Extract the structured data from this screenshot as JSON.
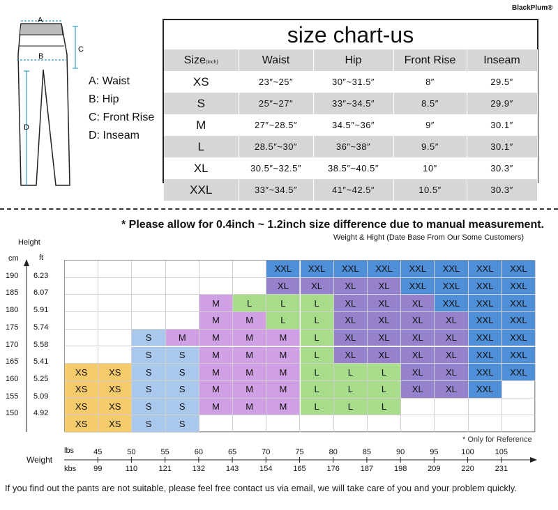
{
  "brand": "BlackPlum®",
  "pants_labels": {
    "a": "A",
    "b": "B",
    "c": "C",
    "d": "D"
  },
  "legend": [
    "A: Waist",
    "B: Hip",
    "C: Front Rise",
    "D: Inseam"
  ],
  "size_chart": {
    "title": "size chart-us",
    "header": {
      "size": "Size",
      "unit": "(Inch)",
      "waist": "Waist",
      "hip": "Hip",
      "front_rise": "Front Rise",
      "inseam": "Inseam"
    },
    "rows": [
      {
        "size": "XS",
        "waist": "23″~25″",
        "hip": "30″~31.5″",
        "rise": "8″",
        "inseam": "29.5″"
      },
      {
        "size": "S",
        "waist": "25″~27″",
        "hip": "33″~34.5″",
        "rise": "8.5″",
        "inseam": "29.9″"
      },
      {
        "size": "M",
        "waist": "27″~28.5″",
        "hip": "34.5″~36″",
        "rise": "9″",
        "inseam": "30.1″"
      },
      {
        "size": "L",
        "waist": "28.5″~30″",
        "hip": "36″~38″",
        "rise": "9.5″",
        "inseam": "30.1″"
      },
      {
        "size": "XL",
        "waist": "30.5″~32.5″",
        "hip": "38.5″~40.5″",
        "rise": "10″",
        "inseam": "30.3″"
      },
      {
        "size": "XXL",
        "waist": "33″~34.5″",
        "hip": "41″~42.5″",
        "rise": "10.5″",
        "inseam": "30.3″"
      }
    ]
  },
  "note": "* Please allow for 0.4inch ~ 1.2inch size difference due to manual measurement.",
  "subnote": "Weight & Hight (Date Base From Our Some Customers)",
  "height_axis": {
    "title": "Height",
    "cm_label": "cm",
    "ft_label": "ft",
    "cm": [
      "190",
      "185",
      "180",
      "175",
      "170",
      "165",
      "160",
      "155",
      "150"
    ],
    "ft": [
      "6.23",
      "6.07",
      "5.91",
      "5.74",
      "5.58",
      "5.41",
      "5.25",
      "5.09",
      "4.92"
    ]
  },
  "weight_grid": [
    [
      "",
      "",
      "",
      "",
      "",
      "",
      "XXL",
      "XXL",
      "XXL",
      "XXL",
      "XXL",
      "XXL",
      "XXL",
      "XXL"
    ],
    [
      "",
      "",
      "",
      "",
      "",
      "",
      "XL",
      "XL",
      "XL",
      "XL",
      "XXL",
      "XXL",
      "XXL",
      "XXL"
    ],
    [
      "",
      "",
      "",
      "",
      "M",
      "L",
      "L",
      "L",
      "XL",
      "XL",
      "XL",
      "XXL",
      "XXL",
      "XXL"
    ],
    [
      "",
      "",
      "",
      "",
      "M",
      "M",
      "L",
      "L",
      "XL",
      "XL",
      "XL",
      "XL",
      "XXL",
      "XXL"
    ],
    [
      "",
      "",
      "S",
      "M",
      "M",
      "M",
      "M",
      "L",
      "XL",
      "XL",
      "XL",
      "XL",
      "XXL",
      "XXL"
    ],
    [
      "",
      "",
      "S",
      "S",
      "M",
      "M",
      "M",
      "L",
      "XL",
      "XL",
      "XL",
      "XL",
      "XXL",
      "XXL"
    ],
    [
      "XS",
      "XS",
      "S",
      "S",
      "M",
      "M",
      "M",
      "L",
      "L",
      "L",
      "XL",
      "XL",
      "XXL",
      "XXL"
    ],
    [
      "XS",
      "XS",
      "S",
      "S",
      "M",
      "M",
      "M",
      "L",
      "L",
      "L",
      "XL",
      "XL",
      "XXL",
      ""
    ],
    [
      "XS",
      "XS",
      "S",
      "S",
      "M",
      "M",
      "M",
      "L",
      "L",
      "L",
      "",
      "",
      "",
      ""
    ],
    [
      "XS",
      "XS",
      "S",
      "S",
      "",
      "",
      "",
      "",
      "",
      "",
      "",
      "",
      "",
      ""
    ]
  ],
  "colors": {
    "XS": "#f6cb6c",
    "S": "#a9c8ec",
    "M": "#cfa0e4",
    "L": "#a6dc8a",
    "XL": "#9581cc",
    "XXL": "#4f8fd8"
  },
  "ref_note": "* Only for Reference",
  "weight_axis": {
    "title": "Weight",
    "lbs_label": "lbs",
    "kbs_label": "kbs",
    "lbs": [
      "45",
      "50",
      "55",
      "60",
      "65",
      "70",
      "75",
      "80",
      "85",
      "90",
      "95",
      "100",
      "105"
    ],
    "kbs": [
      "99",
      "110",
      "121",
      "132",
      "143",
      "154",
      "165",
      "176",
      "187",
      "198",
      "209",
      "220",
      "231"
    ]
  },
  "footer": "If you find out the pants are not suitable, please feel free contact us via email, we will take care of you and your problem quickly."
}
